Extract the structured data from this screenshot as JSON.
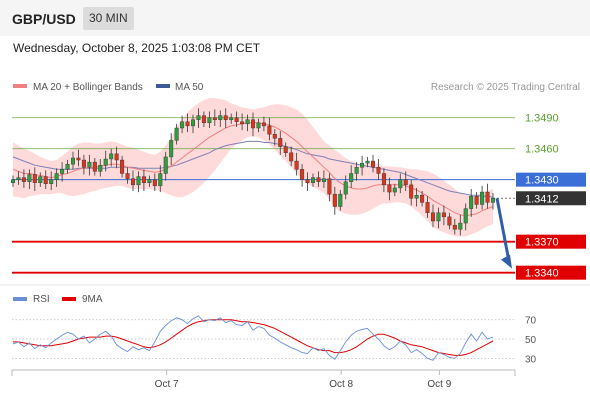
{
  "header": {
    "pair": "GBP/USD",
    "timeframe": "30 MIN"
  },
  "datetime": "Wednesday, October 8, 2025 1:03:08 PM CET",
  "credit": "Research © 2025 Trading Central",
  "colors": {
    "green": "#5aa02c",
    "blue": "#3a6fd8",
    "red": "#e00000",
    "dark": "#333333",
    "bull": "#2e9e3f",
    "bear": "#d6371f",
    "band": "#ffd4d4",
    "ma20": "#f08080",
    "ma50": "#8080b8",
    "arrow": "#2f5fa8",
    "rsi": "#6b8fd6",
    "rsi_ma": "#e00000"
  },
  "chart_data": [
    {
      "type": "candlestick",
      "legend": [
        {
          "name": "MA 20 + Bollinger Bands",
          "color": "#f08080"
        },
        {
          "name": "MA 50",
          "color": "#3a5a9a"
        }
      ],
      "ylim": [
        1.333,
        1.351
      ],
      "levels": [
        {
          "value": 1.349,
          "label": "1.3490",
          "kind": "resistance",
          "color": "#5aa02c"
        },
        {
          "value": 1.346,
          "label": "1.3460",
          "kind": "resistance",
          "color": "#5aa02c"
        },
        {
          "value": 1.343,
          "label": "1.3430",
          "kind": "pivot",
          "color": "#3a6fd8"
        },
        {
          "value": 1.3412,
          "label": "1.3412",
          "kind": "last-price",
          "color": "#333333"
        },
        {
          "value": 1.337,
          "label": "1.3370",
          "kind": "support",
          "color": "#e00000"
        },
        {
          "value": 1.334,
          "label": "1.3340",
          "kind": "support",
          "color": "#e00000"
        }
      ],
      "x_ticks": [
        {
          "index": 30,
          "label": "Oct 7"
        },
        {
          "index": 62,
          "label": "Oct 8"
        },
        {
          "index": 80,
          "label": "Oct 9"
        }
      ],
      "closes": [
        1.343,
        1.3432,
        1.3428,
        1.3435,
        1.3427,
        1.3433,
        1.3426,
        1.343,
        1.3436,
        1.344,
        1.3445,
        1.3451,
        1.3449,
        1.3442,
        1.3447,
        1.3438,
        1.3444,
        1.345,
        1.3455,
        1.3449,
        1.3436,
        1.3431,
        1.3425,
        1.3433,
        1.3427,
        1.343,
        1.3424,
        1.3436,
        1.3452,
        1.3468,
        1.348,
        1.3486,
        1.3482,
        1.3488,
        1.3492,
        1.3485,
        1.349,
        1.3488,
        1.3492,
        1.3488,
        1.349,
        1.3486,
        1.3484,
        1.3488,
        1.348,
        1.3485,
        1.3482,
        1.3474,
        1.347,
        1.3462,
        1.3456,
        1.3448,
        1.344,
        1.343,
        1.3427,
        1.3432,
        1.3428,
        1.3431,
        1.3416,
        1.3404,
        1.3416,
        1.3428,
        1.3436,
        1.3442,
        1.3446,
        1.3448,
        1.3442,
        1.3436,
        1.3425,
        1.3418,
        1.3422,
        1.343,
        1.3425,
        1.3412,
        1.3415,
        1.3408,
        1.3398,
        1.339,
        1.3398,
        1.3394,
        1.3386,
        1.3382,
        1.3388,
        1.3402,
        1.3414,
        1.3406,
        1.3418,
        1.3408,
        1.3412
      ],
      "ma20": [
        1.344,
        1.3438,
        1.3436,
        1.3436,
        1.3435,
        1.3434,
        1.3433,
        1.3432,
        1.3433,
        1.3435,
        1.3436,
        1.3438,
        1.344,
        1.3441,
        1.3442,
        1.3442,
        1.3443,
        1.3444,
        1.3445,
        1.3445,
        1.3444,
        1.3442,
        1.3441,
        1.344,
        1.3439,
        1.3438,
        1.3437,
        1.3438,
        1.344,
        1.3443,
        1.3447,
        1.3451,
        1.3455,
        1.3459,
        1.3463,
        1.3467,
        1.3471,
        1.3474,
        1.3477,
        1.348,
        1.3482,
        1.3483,
        1.3484,
        1.3485,
        1.3485,
        1.3485,
        1.3484,
        1.3483,
        1.3481,
        1.3478,
        1.3475,
        1.3471,
        1.3467,
        1.3462,
        1.3457,
        1.3452,
        1.3447,
        1.3442,
        1.3437,
        1.3431,
        1.3427,
        1.3424,
        1.3422,
        1.3421,
        1.3421,
        1.3422,
        1.3424,
        1.3425,
        1.3425,
        1.3425,
        1.3425,
        1.3425,
        1.3424,
        1.3422,
        1.342,
        1.3417,
        1.3414,
        1.341,
        1.3407,
        1.3404,
        1.3401,
        1.3398,
        1.3396,
        1.3395,
        1.3396,
        1.3397,
        1.34,
        1.3402,
        1.3404
      ],
      "ma50": [
        1.3452,
        1.345,
        1.3448,
        1.3446,
        1.3444,
        1.3443,
        1.3442,
        1.3441,
        1.344,
        1.344,
        1.344,
        1.344,
        1.3441,
        1.3441,
        1.3441,
        1.3441,
        1.3441,
        1.3441,
        1.3442,
        1.3442,
        1.3442,
        1.3442,
        1.3442,
        1.3441,
        1.3441,
        1.3441,
        1.3441,
        1.3441,
        1.3442,
        1.3443,
        1.3444,
        1.3446,
        1.3448,
        1.345,
        1.3452,
        1.3454,
        1.3456,
        1.3459,
        1.3461,
        1.3463,
        1.3464,
        1.3465,
        1.3466,
        1.3467,
        1.3467,
        1.3467,
        1.3466,
        1.3466,
        1.3465,
        1.3464,
        1.3462,
        1.3461,
        1.3459,
        1.3457,
        1.3455,
        1.3454,
        1.3453,
        1.3452,
        1.345,
        1.3449,
        1.3448,
        1.3447,
        1.3446,
        1.3445,
        1.3444,
        1.3443,
        1.3442,
        1.3441,
        1.344,
        1.3439,
        1.3438,
        1.3437,
        1.3435,
        1.3433,
        1.3431,
        1.3429,
        1.3427,
        1.3425,
        1.3423,
        1.3421,
        1.3419,
        1.3418,
        1.3417,
        1.3416,
        1.3415,
        1.3415,
        1.3414,
        1.3414,
        1.3413
      ],
      "bb_width": [
        0.0026,
        0.0025,
        0.0024,
        0.0022,
        0.002,
        0.0018,
        0.0017,
        0.0016,
        0.0016,
        0.0018,
        0.0021,
        0.0024,
        0.0025,
        0.0025,
        0.0024,
        0.0023,
        0.0022,
        0.0022,
        0.0022,
        0.0021,
        0.002,
        0.002,
        0.002,
        0.0019,
        0.0018,
        0.0017,
        0.0017,
        0.0019,
        0.0023,
        0.0028,
        0.0034,
        0.0038,
        0.004,
        0.0041,
        0.0041,
        0.004,
        0.0038,
        0.0035,
        0.0031,
        0.0027,
        0.0022,
        0.0019,
        0.0016,
        0.0014,
        0.0013,
        0.0014,
        0.0016,
        0.0019,
        0.0022,
        0.0025,
        0.0027,
        0.0029,
        0.0031,
        0.0032,
        0.0031,
        0.0029,
        0.0027,
        0.0025,
        0.0026,
        0.0028,
        0.0028,
        0.0027,
        0.0026,
        0.0025,
        0.0024,
        0.0023,
        0.0022,
        0.002,
        0.0018,
        0.0018,
        0.0017,
        0.0017,
        0.0017,
        0.0018,
        0.002,
        0.0022,
        0.0024,
        0.0026,
        0.0026,
        0.0025,
        0.0024,
        0.0023,
        0.0021,
        0.002,
        0.0019,
        0.0018,
        0.0018,
        0.0017,
        0.0017
      ],
      "projection": {
        "from_value": 1.3412,
        "to_value": 1.3342
      }
    },
    {
      "type": "line",
      "legend": [
        {
          "name": "RSI",
          "color": "#6b8fd6"
        },
        {
          "name": "9MA",
          "color": "#e00000"
        }
      ],
      "ylim": [
        20,
        78
      ],
      "y_ticks": [
        70,
        50,
        30
      ],
      "rsi": [
        45,
        47,
        42,
        46,
        40,
        44,
        41,
        46,
        50,
        54,
        57,
        55,
        50,
        53,
        46,
        50,
        55,
        58,
        53,
        44,
        40,
        37,
        42,
        39,
        41,
        38,
        47,
        58,
        64,
        69,
        72,
        70,
        66,
        71,
        74,
        68,
        70,
        69,
        72,
        67,
        69,
        65,
        64,
        68,
        59,
        63,
        61,
        54,
        51,
        47,
        44,
        41,
        39,
        36,
        35,
        41,
        38,
        40,
        33,
        29,
        38,
        47,
        54,
        58,
        60,
        61,
        55,
        50,
        43,
        39,
        42,
        48,
        44,
        36,
        39,
        35,
        30,
        28,
        36,
        34,
        31,
        30,
        35,
        46,
        55,
        48,
        57,
        50,
        52
      ],
      "ma9": [
        47,
        47,
        46,
        45,
        44,
        43,
        43,
        43,
        44,
        45,
        46,
        48,
        50,
        51,
        52,
        52,
        52,
        53,
        53,
        52,
        50,
        48,
        46,
        44,
        42,
        41,
        42,
        44,
        47,
        51,
        55,
        59,
        63,
        66,
        68,
        69,
        70,
        70,
        70,
        70,
        70,
        69,
        68,
        68,
        67,
        66,
        65,
        63,
        61,
        58,
        55,
        52,
        49,
        46,
        43,
        41,
        39,
        38,
        38,
        36,
        36,
        37,
        39,
        42,
        46,
        50,
        53,
        55,
        55,
        53,
        51,
        48,
        46,
        44,
        43,
        42,
        40,
        38,
        36,
        35,
        34,
        33,
        33,
        34,
        36,
        39,
        42,
        45,
        48
      ]
    }
  ]
}
